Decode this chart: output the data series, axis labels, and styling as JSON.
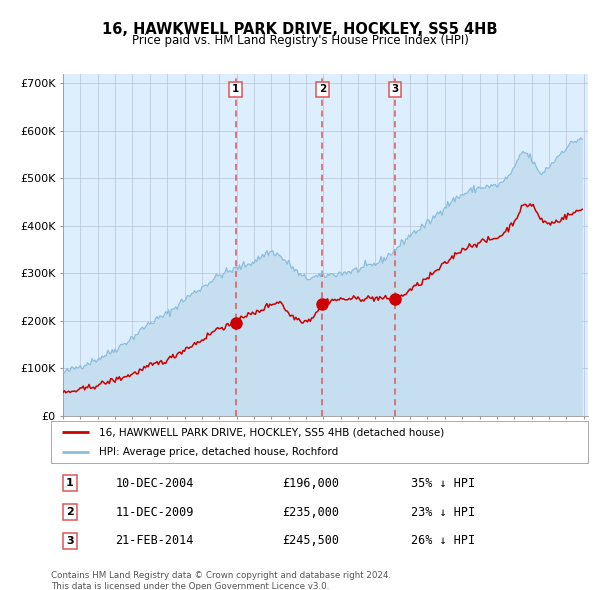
{
  "title": "16, HAWKWELL PARK DRIVE, HOCKLEY, SS5 4HB",
  "subtitle": "Price paid vs. HM Land Registry's House Price Index (HPI)",
  "legend_red": "16, HAWKWELL PARK DRIVE, HOCKLEY, SS5 4HB (detached house)",
  "legend_blue": "HPI: Average price, detached house, Rochford",
  "sale_dates": [
    "2004-12-10",
    "2009-12-11",
    "2014-02-21"
  ],
  "sale_prices": [
    196000,
    235000,
    245500
  ],
  "sale_labels": [
    "1",
    "2",
    "3"
  ],
  "sale_hpi_pct": [
    "35% ↓ HPI",
    "23% ↓ HPI",
    "26% ↓ HPI"
  ],
  "sale_date_str": [
    "10-DEC-2004",
    "11-DEC-2009",
    "21-FEB-2014"
  ],
  "sale_price_str": [
    "£196,000",
    "£235,000",
    "£245,500"
  ],
  "hpi_color": "#8bbcdb",
  "hpi_fill_color": "#c5dff0",
  "red_color": "#cc0000",
  "dashed_color": "#e05555",
  "bg_color": "#ddeeff",
  "grid_color": "#b0b8cc",
  "ylim": [
    0,
    720000
  ],
  "yticks": [
    0,
    100000,
    200000,
    300000,
    400000,
    500000,
    600000,
    700000
  ],
  "ytick_labels": [
    "£0",
    "£100K",
    "£200K",
    "£300K",
    "£400K",
    "£500K",
    "£600K",
    "£700K"
  ],
  "footer": "Contains HM Land Registry data © Crown copyright and database right 2024.\nThis data is licensed under the Open Government Licence v3.0."
}
